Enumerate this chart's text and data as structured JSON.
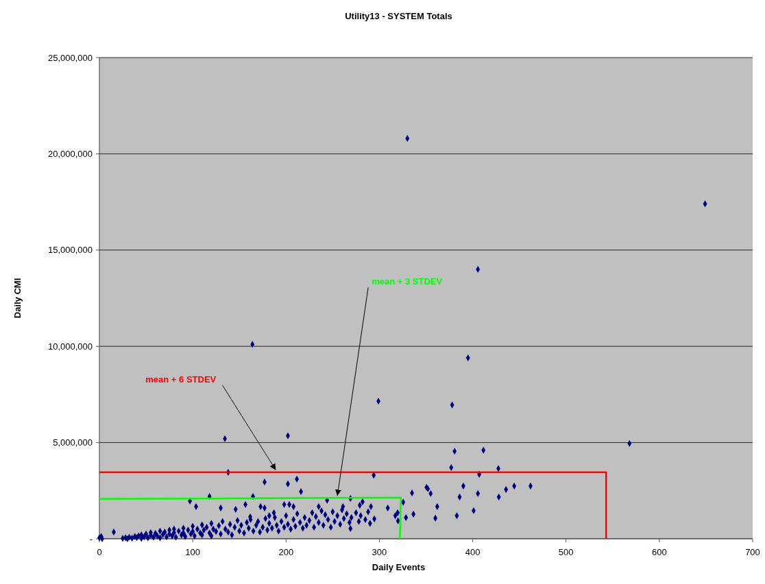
{
  "chart_data": {
    "type": "scatter",
    "title": "Utility13 - SYSTEM Totals",
    "xlabel": "Daily Events",
    "ylabel": "Daily CMI",
    "xlim": [
      0,
      700
    ],
    "xticks": [
      0,
      100,
      200,
      300,
      400,
      500,
      600,
      700
    ],
    "ylim": [
      0,
      25000000
    ],
    "yticks": [
      {
        "value": 0,
        "label": "-"
      },
      {
        "value": 5000000,
        "label": "5,000,000"
      },
      {
        "value": 10000000,
        "label": "10,000,000"
      },
      {
        "value": 15000000,
        "label": "15,000,000"
      },
      {
        "value": 20000000,
        "label": "20,000,000"
      },
      {
        "value": 25000000,
        "label": "25,000,000"
      }
    ],
    "grid": "y",
    "marker": "diamond",
    "series": [
      {
        "color": "#000080",
        "x": [
          0,
          2,
          3,
          15.4,
          25,
          28,
          30,
          32,
          35,
          38,
          40,
          42,
          45,
          45,
          48,
          50,
          52,
          55,
          55,
          58,
          60,
          62,
          65,
          65,
          68,
          70,
          72,
          75,
          75,
          78,
          80,
          80,
          82,
          85,
          88,
          90,
          90,
          92,
          95,
          98,
          100,
          100,
          102,
          105,
          108,
          110,
          110,
          112,
          115,
          118,
          120,
          120,
          122,
          125,
          128,
          130,
          132,
          135,
          138,
          140,
          142,
          145,
          148,
          150,
          152,
          155,
          158,
          160,
          162,
          165,
          168,
          170,
          172,
          175,
          178,
          180,
          182,
          185,
          188,
          190,
          192,
          195,
          198,
          200,
          202,
          205,
          208,
          210,
          212,
          215,
          218,
          220,
          222,
          225,
          228,
          230,
          232,
          235,
          238,
          240,
          242,
          245,
          248,
          250,
          252,
          255,
          258,
          260,
          262,
          265,
          268,
          270,
          275,
          278,
          280,
          285,
          288,
          290,
          330,
          649,
          405.6,
          164,
          395,
          299,
          378,
          568,
          134.5,
          202,
          380.6,
          411.5,
          377,
          427.5,
          407,
          138,
          294,
          211.6,
          202,
          177,
          118,
          164.6,
          97,
          103.6,
          130,
          146,
          156.5,
          172.7,
          177,
          198,
          203.5,
          208,
          187,
          182,
          161.6,
          216,
          269,
          244,
          309,
          325.5,
          335,
          350.5,
          352,
          355,
          362,
          336.5,
          328.5,
          360,
          390,
          386,
          383,
          401,
          405.6,
          428,
          435.7,
          444.5,
          462,
          317,
          320,
          319.6,
          294.6,
          291,
          282,
          279,
          261,
          269,
          235
        ],
        "values": [
          50000,
          120000,
          0,
          350000,
          20000,
          50000,
          0,
          80000,
          30000,
          120000,
          60000,
          150000,
          20000,
          200000,
          100000,
          250000,
          50000,
          180000,
          320000,
          80000,
          280000,
          150000,
          400000,
          50000,
          220000,
          350000,
          100000,
          450000,
          250000,
          150000,
          500000,
          320000,
          80000,
          400000,
          200000,
          550000,
          300000,
          120000,
          450000,
          250000,
          650000,
          380000,
          150000,
          500000,
          300000,
          720000,
          200000,
          450000,
          600000,
          300000,
          800000,
          150000,
          500000,
          380000,
          680000,
          250000,
          900000,
          500000,
          350000,
          750000,
          200000,
          600000,
          950000,
          400000,
          700000,
          300000,
          850000,
          550000,
          1000000,
          400000,
          700000,
          900000,
          350000,
          600000,
          1050000,
          450000,
          800000,
          550000,
          1100000,
          700000,
          400000,
          900000,
          600000,
          1200000,
          750000,
          500000,
          1000000,
          650000,
          1300000,
          850000,
          550000,
          1100000,
          700000,
          950000,
          1350000,
          600000,
          1150000,
          850000,
          1450000,
          700000,
          1250000,
          1000000,
          600000,
          1400000,
          900000,
          1200000,
          750000,
          1500000,
          1050000,
          1300000,
          850000,
          1100000,
          1350000,
          900000,
          1200000,
          1000000,
          1400000,
          800000,
          20800000,
          17400000,
          14000000,
          10100000,
          9400000,
          7150000,
          6950000,
          4950000,
          5200000,
          5350000,
          4550000,
          4600000,
          3700000,
          3650000,
          3350000,
          3450000,
          3300000,
          3100000,
          2850000,
          2950000,
          2200000,
          2200000,
          1960000,
          1670000,
          1600000,
          1530000,
          1780000,
          1670000,
          1600000,
          1780000,
          1780000,
          1670000,
          1350000,
          1200000,
          1140000,
          2450000,
          2100000,
          2000000,
          1600000,
          1900000,
          2380000,
          2670000,
          2600000,
          2350000,
          1670000,
          1280000,
          1100000,
          1070000,
          2740000,
          2170000,
          1200000,
          1460000,
          2350000,
          2170000,
          2560000,
          2740000,
          2740000,
          1200000,
          930000,
          1350000,
          1030000,
          1670000,
          1920000,
          1740000,
          1670000,
          530000,
          1670000
        ]
      },
      {
        "type": "line",
        "marker": "none",
        "color": "#ff0000",
        "x": [
          0,
          543,
          543
        ],
        "values": [
          3450000,
          3450000,
          0
        ]
      },
      {
        "type": "line",
        "marker": "none",
        "color": "#00ff00",
        "x": [
          0,
          323,
          322
        ],
        "values": [
          2070000,
          2140000,
          0
        ]
      }
    ],
    "annotations": [
      {
        "text": "mean + 6 STDEV",
        "x": 189,
        "y": 3500000
      },
      {
        "text": "mean + 3 STDEV",
        "x": 255,
        "y": 2160000
      }
    ]
  }
}
